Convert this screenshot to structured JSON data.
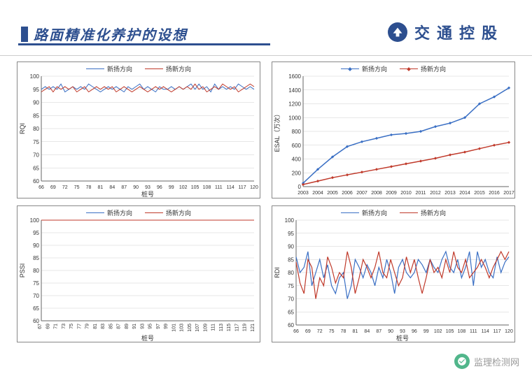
{
  "header": {
    "title": "路面精准化养护的设想",
    "brand": "交通控股"
  },
  "watermark": {
    "text": "监理检测网"
  },
  "legend_labels": {
    "series_a": "新扬方向",
    "series_b": "扬新方向"
  },
  "colors": {
    "series_a": "#3a6fc4",
    "series_b": "#c03a2b",
    "grid": "#cfcfcf",
    "axis": "#666666",
    "brand": "#2d4f8f",
    "bg": "#ffffff"
  },
  "chart_tl": {
    "type": "line",
    "ylabel": "RQI",
    "xlabel": "桩号",
    "ylim": [
      60,
      100
    ],
    "ytick_step": 5,
    "xticks": [
      66,
      69,
      72,
      75,
      78,
      81,
      84,
      87,
      90,
      93,
      96,
      99,
      102,
      105,
      108,
      111,
      114,
      117,
      120
    ],
    "series_a": [
      95,
      96,
      95,
      96,
      95,
      97,
      94,
      95,
      96,
      95,
      96,
      95,
      97,
      96,
      95,
      94,
      95,
      96,
      95,
      96,
      95,
      94,
      96,
      95,
      96,
      97,
      95,
      96,
      95,
      94,
      96,
      95,
      95,
      96,
      95,
      96,
      95,
      96,
      97,
      95,
      97,
      95,
      96,
      94,
      97,
      95,
      96,
      95,
      96,
      95,
      97,
      96,
      95,
      96,
      95
    ],
    "series_b": [
      94,
      95,
      96,
      94,
      96,
      95,
      96,
      95,
      96,
      94,
      95,
      96,
      94,
      95,
      96,
      95,
      96,
      95,
      96,
      94,
      95,
      96,
      95,
      94,
      95,
      96,
      95,
      94,
      95,
      96,
      95,
      96,
      95,
      94,
      95,
      96,
      95,
      96,
      95,
      97,
      95,
      96,
      94,
      95,
      96,
      95,
      97,
      96,
      95,
      96,
      94,
      95,
      96,
      97,
      96
    ],
    "label_fontsize": 9,
    "line_width": 1
  },
  "chart_tr": {
    "type": "line-marker",
    "ylabel": "ESAL（万次）",
    "xlabel": "",
    "ylim": [
      0,
      1600
    ],
    "ytick_step": 200,
    "xticks": [
      2003,
      2004,
      2005,
      2006,
      2007,
      2008,
      2009,
      2010,
      2011,
      2012,
      2013,
      2014,
      2015,
      2016,
      2017
    ],
    "series_a": [
      50,
      250,
      430,
      580,
      650,
      700,
      750,
      770,
      800,
      870,
      920,
      1000,
      1200,
      1300,
      1430
    ],
    "series_b": [
      30,
      80,
      130,
      170,
      210,
      250,
      290,
      330,
      370,
      410,
      460,
      500,
      550,
      600,
      640
    ],
    "label_fontsize": 9,
    "line_width": 1.5,
    "marker_size": 3
  },
  "chart_bl": {
    "type": "line",
    "ylabel": "PSSI",
    "xlabel": "桩号",
    "ylim": [
      60,
      100
    ],
    "ytick_step": 5,
    "xticks_rotated": true,
    "xticks": [
      67,
      69,
      71,
      73,
      75,
      77,
      79,
      81,
      83,
      85,
      87,
      89,
      91,
      93,
      95,
      97,
      99,
      101,
      103,
      105,
      107,
      109,
      111,
      113,
      115,
      117,
      119,
      121
    ],
    "series_a": [
      100,
      100,
      100,
      100,
      100,
      100,
      100,
      100,
      100,
      100,
      100,
      100,
      100,
      100,
      100,
      100,
      100,
      100,
      100,
      100,
      100,
      100,
      100,
      100,
      100,
      100,
      100,
      100
    ],
    "series_b": [
      100,
      100,
      100,
      100,
      100,
      100,
      100,
      100,
      100,
      100,
      100,
      100,
      100,
      100,
      100,
      100,
      100,
      100,
      100,
      100,
      100,
      100,
      100,
      100,
      100,
      100,
      100,
      100
    ],
    "label_fontsize": 9,
    "line_width": 1
  },
  "chart_br": {
    "type": "line",
    "ylabel": "RDI",
    "xlabel": "桩号",
    "ylim": [
      60,
      100
    ],
    "ytick_step": 5,
    "xticks": [
      66,
      69,
      72,
      75,
      78,
      81,
      84,
      87,
      90,
      93,
      96,
      99,
      102,
      105,
      108,
      111,
      114,
      117,
      120
    ],
    "series_a": [
      86,
      80,
      82,
      88,
      75,
      80,
      85,
      78,
      83,
      75,
      72,
      78,
      80,
      70,
      75,
      85,
      82,
      78,
      83,
      80,
      75,
      82,
      78,
      85,
      80,
      72,
      82,
      85,
      80,
      78,
      80,
      85,
      83,
      80,
      85,
      82,
      80,
      85,
      88,
      82,
      80,
      85,
      78,
      82,
      88,
      75,
      88,
      82,
      85,
      80,
      78,
      86,
      80,
      84,
      86
    ],
    "series_b": [
      84,
      76,
      72,
      85,
      82,
      70,
      78,
      75,
      86,
      82,
      76,
      80,
      78,
      88,
      82,
      72,
      78,
      85,
      82,
      78,
      82,
      88,
      80,
      78,
      85,
      80,
      75,
      78,
      86,
      80,
      85,
      78,
      72,
      78,
      85,
      80,
      82,
      78,
      85,
      80,
      88,
      82,
      80,
      85,
      78,
      80,
      82,
      85,
      82,
      78,
      82,
      85,
      88,
      85,
      88
    ],
    "label_fontsize": 9,
    "line_width": 1.2
  }
}
